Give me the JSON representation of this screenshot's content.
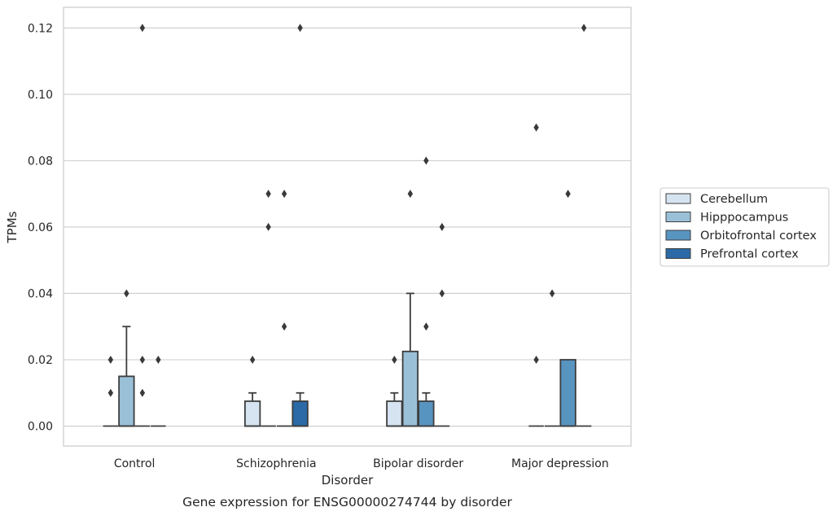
{
  "chart_data": {
    "type": "box",
    "caption": "Gene expression for ENSG00000274744 by disorder",
    "xlabel": "Disorder",
    "ylabel": "TPMs",
    "ylim": [
      -0.006,
      0.1262
    ],
    "yticks": [
      0.0,
      0.02,
      0.04,
      0.06,
      0.08,
      0.1,
      0.12
    ],
    "ytick_labels": [
      "0.00",
      "0.02",
      "0.04",
      "0.06",
      "0.08",
      "0.10",
      "0.12"
    ],
    "grid": "horizontal",
    "legend_position": "right",
    "categories": [
      "Control",
      "Schizophrenia",
      "Bipolar disorder",
      "Major depression"
    ],
    "series": [
      {
        "name": "Cerebellum",
        "color": "#d6e4f1",
        "boxes": [
          {
            "q1": 0,
            "median": 0,
            "q3": 0,
            "whisker_low": 0,
            "whisker_high": 0,
            "outliers": [
              0.01,
              0.02
            ]
          },
          {
            "q1": 0,
            "median": 0,
            "q3": 0.0075,
            "whisker_low": 0,
            "whisker_high": 0.01,
            "outliers": [
              0.02
            ]
          },
          {
            "q1": 0,
            "median": 0,
            "q3": 0.0075,
            "whisker_low": 0,
            "whisker_high": 0.01,
            "outliers": [
              0.02
            ]
          },
          {
            "q1": 0,
            "median": 0,
            "q3": 0,
            "whisker_low": 0,
            "whisker_high": 0,
            "outliers": [
              0.02,
              0.09
            ]
          }
        ]
      },
      {
        "name": "Hipppocampus",
        "color": "#9ac0d8",
        "boxes": [
          {
            "q1": 0,
            "median": 0,
            "q3": 0.015,
            "whisker_low": 0,
            "whisker_high": 0.03,
            "outliers": [
              0.04
            ]
          },
          {
            "q1": 0,
            "median": 0,
            "q3": 0,
            "whisker_low": 0,
            "whisker_high": 0,
            "outliers": [
              0.06,
              0.07
            ]
          },
          {
            "q1": 0,
            "median": 0,
            "q3": 0.0225,
            "whisker_low": 0,
            "whisker_high": 0.04,
            "outliers": [
              0.07
            ]
          },
          {
            "q1": 0,
            "median": 0,
            "q3": 0,
            "whisker_low": 0,
            "whisker_high": 0,
            "outliers": [
              0.04
            ]
          }
        ]
      },
      {
        "name": "Orbitofrontal cortex",
        "color": "#5894c0",
        "boxes": [
          {
            "q1": 0,
            "median": 0,
            "q3": 0,
            "whisker_low": 0,
            "whisker_high": 0,
            "outliers": [
              0.01,
              0.02,
              0.12
            ]
          },
          {
            "q1": 0,
            "median": 0,
            "q3": 0,
            "whisker_low": 0,
            "whisker_high": 0,
            "outliers": [
              0.03,
              0.07
            ]
          },
          {
            "q1": 0,
            "median": 0,
            "q3": 0.0075,
            "whisker_low": 0,
            "whisker_high": 0.01,
            "outliers": [
              0.03,
              0.08
            ]
          },
          {
            "q1": 0,
            "median": 0,
            "q3": 0.02,
            "whisker_low": 0,
            "whisker_high": 0.02,
            "outliers": [
              0.07
            ]
          }
        ]
      },
      {
        "name": "Prefrontal cortex",
        "color": "#2b6aa6",
        "boxes": [
          {
            "q1": 0,
            "median": 0,
            "q3": 0,
            "whisker_low": 0,
            "whisker_high": 0,
            "outliers": [
              0.02
            ]
          },
          {
            "q1": 0,
            "median": 0,
            "q3": 0.0075,
            "whisker_low": 0,
            "whisker_high": 0.01,
            "outliers": [
              0.12
            ]
          },
          {
            "q1": 0,
            "median": 0,
            "q3": 0,
            "whisker_low": 0,
            "whisker_high": 0,
            "outliers": [
              0.04,
              0.06
            ]
          },
          {
            "q1": 0,
            "median": 0,
            "q3": 0,
            "whisker_low": 0,
            "whisker_high": 0,
            "outliers": [
              0.12
            ]
          }
        ]
      }
    ]
  }
}
